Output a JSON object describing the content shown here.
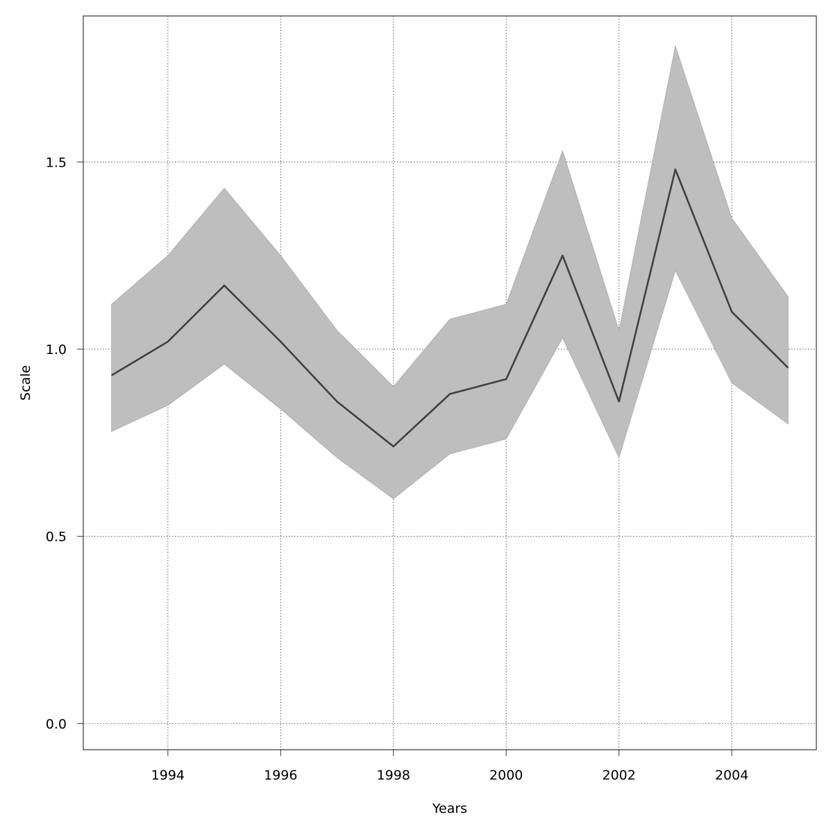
{
  "chart_data": {
    "type": "line",
    "title": "",
    "xlabel": "Years",
    "ylabel": "Scale",
    "x": [
      1993,
      1994,
      1995,
      1996,
      1997,
      1998,
      1999,
      2000,
      2001,
      2002,
      2003,
      2004,
      2005
    ],
    "series": [
      {
        "values": [
          0.93,
          1.02,
          1.17,
          1.02,
          0.86,
          0.74,
          0.88,
          0.92,
          1.25,
          0.86,
          1.48,
          1.1,
          0.95
        ],
        "lower": [
          0.78,
          0.85,
          0.96,
          0.84,
          0.71,
          0.6,
          0.72,
          0.76,
          1.03,
          0.71,
          1.21,
          0.91,
          0.8
        ],
        "upper": [
          1.12,
          1.25,
          1.43,
          1.25,
          1.05,
          0.9,
          1.08,
          1.12,
          1.53,
          1.05,
          1.81,
          1.35,
          1.14
        ]
      }
    ],
    "xticks": [
      "1994",
      "1996",
      "1998",
      "2000",
      "2002",
      "2004"
    ],
    "yticks": [
      "0.0",
      "0.5",
      "1.0",
      "1.5"
    ],
    "xlim": [
      1992.5,
      2005.5
    ],
    "ylim": [
      -0.07,
      1.89
    ],
    "grid": true,
    "colors": {
      "line": "#404040",
      "band": "#bebebe",
      "grid": "#555555",
      "axis": "#333333"
    }
  }
}
